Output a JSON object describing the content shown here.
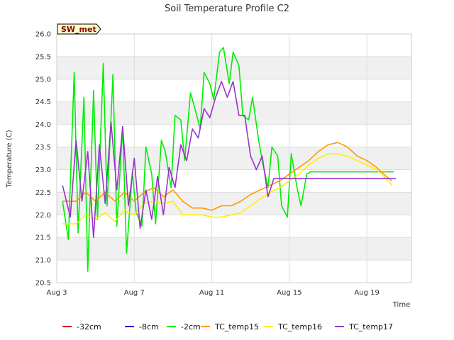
{
  "chart_data": {
    "type": "line",
    "title": "Soil Temperature Profile C2",
    "xlabel": "Time",
    "ylabel": "Temperature (C)",
    "station_label": "SW_met",
    "ylim": [
      20.5,
      26.0
    ],
    "yticks": [
      20.5,
      21.0,
      21.5,
      22.0,
      22.5,
      23.0,
      23.5,
      24.0,
      24.5,
      25.0,
      25.5,
      26.0
    ],
    "xlim": [
      0,
      18.3
    ],
    "xticks": [
      {
        "value": 0,
        "label": "Aug 3"
      },
      {
        "value": 4,
        "label": "Aug 7"
      },
      {
        "value": 8,
        "label": "Aug 11"
      },
      {
        "value": 12,
        "label": "Aug 15"
      },
      {
        "value": 16,
        "label": "Aug 19"
      }
    ],
    "grid": true,
    "legend_position": "bottom",
    "series": [
      {
        "name": "-32cm",
        "color": "#cc0000",
        "x": [],
        "y": []
      },
      {
        "name": "-8cm",
        "color": "#0000cc",
        "x": [],
        "y": []
      },
      {
        "name": "-2cm",
        "color": "#00ee00",
        "x": [
          0.3,
          0.6,
          0.9,
          1.1,
          1.4,
          1.6,
          1.9,
          2.1,
          2.4,
          2.6,
          2.9,
          3.1,
          3.4,
          3.6,
          3.9,
          4.1,
          4.4,
          4.6,
          4.9,
          5.1,
          5.4,
          5.6,
          5.9,
          6.1,
          6.4,
          6.6,
          6.9,
          7.1,
          7.4,
          7.6,
          7.9,
          8.1,
          8.4,
          8.6,
          8.9,
          9.1,
          9.4,
          9.6,
          9.9,
          10.1,
          10.4,
          10.6,
          10.9,
          11.1,
          11.4,
          11.6,
          11.9,
          12.1,
          12.4,
          12.6,
          12.9,
          13.1,
          13.4,
          13.6,
          13.9,
          14.1,
          14.4,
          14.6,
          14.9,
          15.1,
          15.4,
          15.6,
          15.9,
          16.1,
          16.4,
          16.6,
          16.9,
          17.1,
          17.4
        ],
        "y": [
          22.3,
          21.45,
          25.15,
          21.6,
          24.6,
          20.75,
          24.75,
          21.9,
          25.35,
          22.2,
          25.1,
          21.75,
          23.95,
          21.15,
          22.95,
          22.05,
          21.75,
          23.5,
          22.9,
          21.8,
          23.65,
          23.4,
          22.6,
          24.2,
          24.1,
          23.2,
          24.7,
          24.4,
          23.9,
          25.15,
          24.9,
          24.55,
          25.6,
          25.7,
          24.9,
          25.6,
          25.3,
          24.2,
          24.1,
          24.6,
          23.7,
          23.2,
          22.6,
          23.5,
          23.3,
          22.2,
          21.95,
          23.35,
          22.6,
          22.2,
          22.9,
          22.95,
          22.95,
          22.95,
          22.95,
          22.95,
          22.95,
          22.95,
          22.95,
          22.95,
          22.95,
          22.95,
          22.95,
          22.95,
          22.95,
          22.95,
          22.95,
          22.95,
          22.95
        ]
      },
      {
        "name": "TC_temp15",
        "color": "#ff9900",
        "x": [
          0.3,
          1,
          1.5,
          2,
          2.5,
          3,
          3.5,
          4,
          4.5,
          5,
          5.5,
          6,
          6.5,
          7,
          7.5,
          8,
          8.5,
          9,
          9.5,
          10,
          10.5,
          11,
          11.5,
          12,
          12.5,
          13,
          13.5,
          14,
          14.5,
          15,
          15.5,
          16,
          16.5,
          17,
          17.3
        ],
        "y": [
          22.3,
          22.3,
          22.5,
          22.3,
          22.5,
          22.3,
          22.5,
          22.3,
          22.5,
          22.6,
          22.4,
          22.55,
          22.3,
          22.15,
          22.15,
          22.1,
          22.2,
          22.2,
          22.3,
          22.45,
          22.55,
          22.65,
          22.75,
          22.9,
          23.05,
          23.2,
          23.4,
          23.55,
          23.6,
          23.5,
          23.3,
          23.2,
          23.05,
          22.85,
          22.75
        ]
      },
      {
        "name": "TC_temp16",
        "color": "#ffee00",
        "x": [
          0.3,
          1,
          1.5,
          2,
          2.5,
          3,
          3.5,
          4,
          4.5,
          5,
          5.5,
          6,
          6.5,
          7,
          7.5,
          8,
          8.5,
          9,
          9.5,
          10,
          10.5,
          11,
          11.5,
          12,
          12.5,
          13,
          13.5,
          14,
          14.5,
          15,
          15.5,
          16,
          16.5,
          17,
          17.3
        ],
        "y": [
          21.8,
          21.8,
          22.0,
          21.9,
          22.05,
          21.85,
          22.1,
          22.0,
          22.25,
          22.3,
          22.25,
          22.3,
          22.0,
          22.0,
          22.0,
          21.95,
          21.95,
          22.0,
          22.05,
          22.2,
          22.35,
          22.5,
          22.6,
          22.75,
          22.9,
          23.1,
          23.25,
          23.35,
          23.35,
          23.3,
          23.2,
          23.1,
          23.0,
          22.8,
          22.65
        ]
      },
      {
        "name": "TC_temp17",
        "color": "#9933cc",
        "x": [
          0.3,
          0.7,
          1.0,
          1.3,
          1.6,
          1.9,
          2.2,
          2.5,
          2.8,
          3.1,
          3.4,
          3.7,
          4.0,
          4.3,
          4.6,
          4.9,
          5.2,
          5.5,
          5.8,
          6.1,
          6.4,
          6.7,
          7.0,
          7.3,
          7.6,
          7.9,
          8.2,
          8.5,
          8.8,
          9.1,
          9.4,
          9.7,
          10.0,
          10.3,
          10.6,
          10.9,
          11.2,
          11.5,
          11.8,
          12.1,
          12.4,
          12.7,
          13.0,
          13.3,
          13.6,
          13.9,
          14.2,
          14.5,
          14.8,
          15.1,
          15.4,
          15.7,
          16.0,
          16.3,
          16.6,
          16.9,
          17.2,
          17.5
        ],
        "y": [
          22.65,
          21.95,
          23.65,
          22.3,
          23.4,
          21.5,
          23.55,
          22.25,
          24.05,
          22.55,
          23.95,
          22.2,
          23.25,
          21.7,
          22.55,
          21.9,
          22.85,
          22.0,
          23.05,
          22.6,
          23.55,
          23.2,
          23.9,
          23.7,
          24.35,
          24.15,
          24.6,
          24.95,
          24.6,
          24.95,
          24.2,
          24.2,
          23.3,
          23.0,
          23.3,
          22.4,
          22.8,
          22.8,
          22.8,
          22.8,
          22.8,
          22.8,
          22.8,
          22.8,
          22.8,
          22.8,
          22.8,
          22.8,
          22.8,
          22.8,
          22.8,
          22.8,
          22.8,
          22.8,
          22.8,
          22.8,
          22.8,
          22.8
        ]
      }
    ]
  }
}
